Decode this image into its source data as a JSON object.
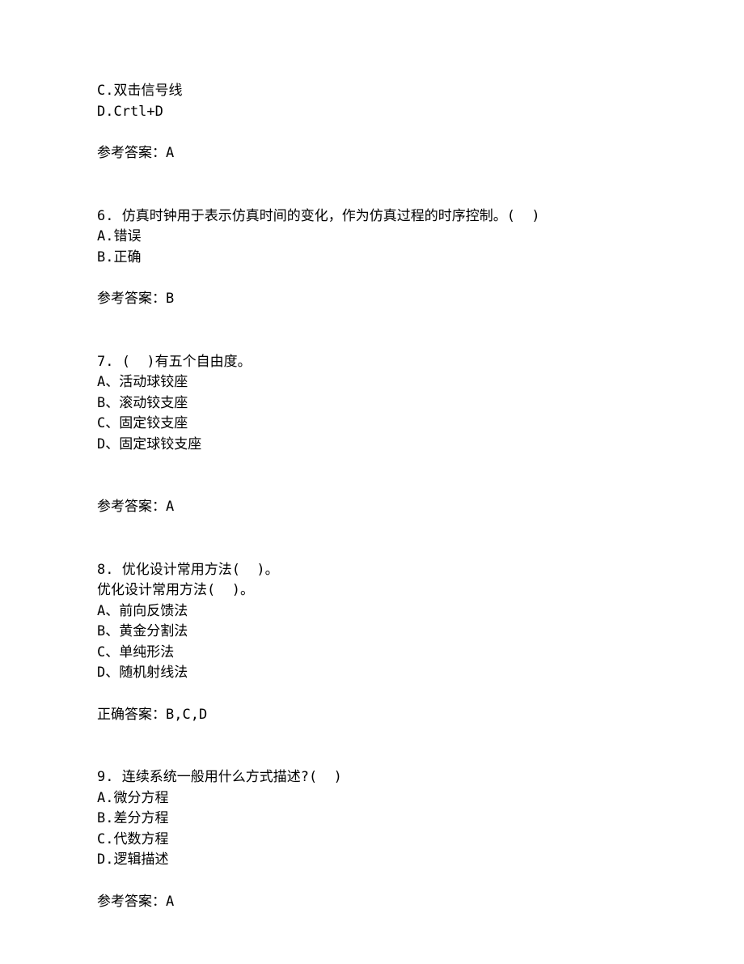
{
  "q5_tail": {
    "options": [
      "C.双击信号线",
      "D.Crtl+D"
    ],
    "answer_line": "参考答案：A"
  },
  "q6": {
    "stem": "6. 仿真时钟用于表示仿真时间的变化，作为仿真过程的时序控制。(  )",
    "options": [
      "A.错误",
      "B.正确"
    ],
    "answer_line": "参考答案：B"
  },
  "q7": {
    "stem": "7. (  )有五个自由度。",
    "options": [
      "A、活动球铰座",
      "B、滚动铰支座",
      "C、固定铰支座",
      "D、固定球铰支座"
    ],
    "answer_line": "参考答案：A"
  },
  "q8": {
    "stem1": "8. 优化设计常用方法(  )。",
    "stem2": "优化设计常用方法(  )。",
    "options": [
      "A、前向反馈法",
      "B、黄金分割法",
      "C、单纯形法",
      "D、随机射线法"
    ],
    "answer_line": "正确答案：B,C,D"
  },
  "q9": {
    "stem": "9. 连续系统一般用什么方式描述?(  )",
    "options": [
      "A.微分方程",
      "B.差分方程",
      "C.代数方程",
      "D.逻辑描述"
    ],
    "answer_line": "参考答案：A"
  }
}
